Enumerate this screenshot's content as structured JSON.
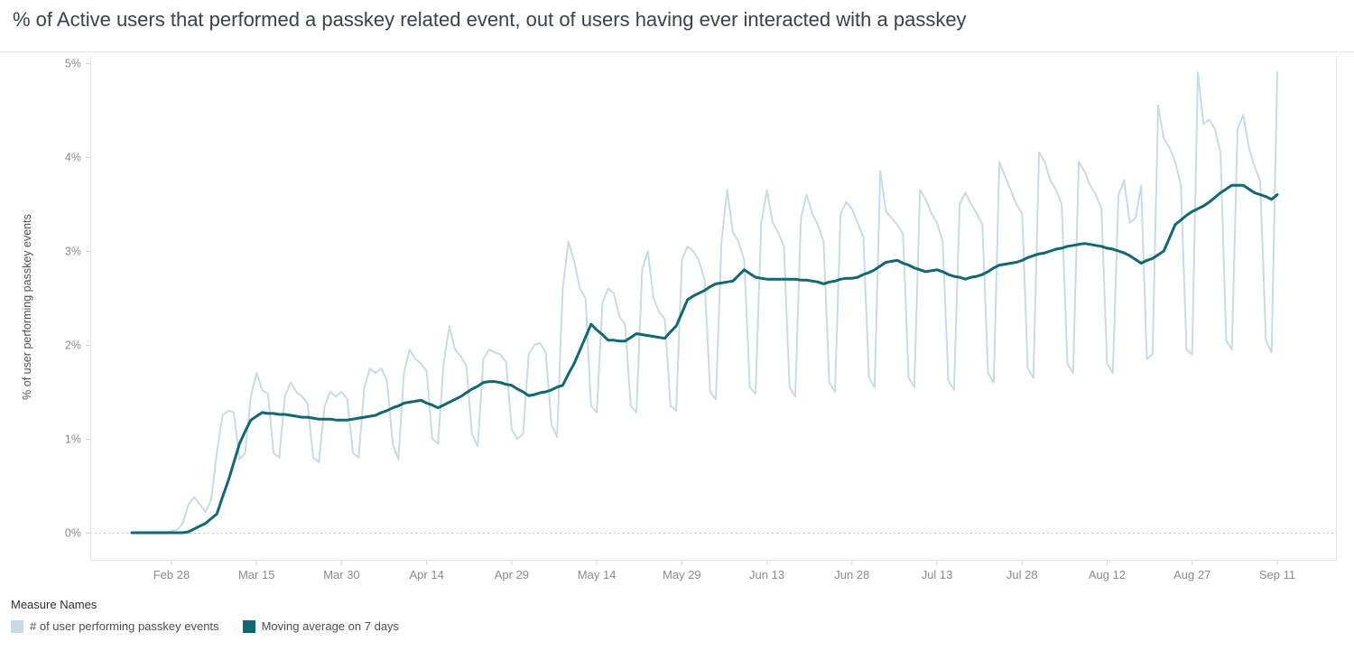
{
  "title": "% of Active users that performed a passkey related event, out of users having ever interacted with a passkey",
  "colors": {
    "daily_series": "#c7dce2",
    "moving_avg_series": "#0f6876",
    "axis_text": "#878c91",
    "title_text": "#3a4149",
    "grid_dotted": "#c9c9c9",
    "rule": "#e3e3e3",
    "background": "#ffffff"
  },
  "legend": {
    "title": "Measure Names",
    "items": [
      {
        "label": "# of user performing passkey events",
        "color": "#c7dce2"
      },
      {
        "label": "Moving average on 7 days",
        "color": "#0f6876"
      }
    ]
  },
  "chart_data": {
    "type": "line",
    "title": "% of Active users that performed a passkey related event, out of users having ever interacted with a passkey",
    "xlabel": "",
    "ylabel": "% of user performing passkey events",
    "ylim": [
      0,
      5
    ],
    "y_ticks": [
      "0%",
      "1%",
      "2%",
      "3%",
      "4%",
      "5%"
    ],
    "y_tick_values": [
      0,
      1,
      2,
      3,
      4,
      5
    ],
    "x_tick_labels": [
      "Feb 28",
      "Mar 15",
      "Mar 30",
      "Apr 14",
      "Apr 29",
      "May 14",
      "May 29",
      "Jun 13",
      "Jun 28",
      "Jul 13",
      "Jul 28",
      "Aug 12",
      "Aug 27",
      "Sep 11"
    ],
    "x_tick_day_index": [
      7,
      22,
      37,
      52,
      67,
      82,
      97,
      112,
      127,
      142,
      157,
      172,
      187,
      202
    ],
    "x_description": "one point per day, day index 0 is about one week before Feb 28, day index 202 is Sep 11; values estimated from plot",
    "grid": "dotted baseline at 0% only",
    "legend_position": "bottom-left",
    "series": [
      {
        "name": "# of user performing passkey events",
        "color": "#c7dce2",
        "values": [
          0.0,
          0.0,
          0.0,
          0.0,
          0.0,
          0.0,
          0.0,
          0.02,
          0.03,
          0.1,
          0.3,
          0.38,
          0.3,
          0.22,
          0.35,
          0.85,
          1.25,
          1.3,
          1.28,
          0.78,
          0.85,
          1.45,
          1.7,
          1.52,
          1.48,
          0.85,
          0.8,
          1.45,
          1.6,
          1.5,
          1.45,
          1.38,
          0.8,
          0.75,
          1.35,
          1.5,
          1.45,
          1.5,
          1.42,
          0.85,
          0.8,
          1.55,
          1.75,
          1.7,
          1.75,
          1.62,
          0.95,
          0.78,
          1.7,
          1.95,
          1.85,
          1.8,
          1.72,
          1.0,
          0.95,
          1.8,
          2.2,
          1.95,
          1.88,
          1.78,
          1.05,
          0.92,
          1.85,
          1.95,
          1.92,
          1.9,
          1.82,
          1.1,
          1.0,
          1.05,
          1.9,
          2.0,
          2.02,
          1.92,
          1.15,
          1.02,
          2.6,
          3.1,
          2.9,
          2.6,
          2.5,
          1.35,
          1.28,
          2.45,
          2.6,
          2.55,
          2.3,
          2.22,
          1.35,
          1.28,
          2.8,
          3.0,
          2.5,
          2.35,
          2.28,
          1.35,
          1.3,
          2.9,
          3.05,
          3.0,
          2.9,
          2.7,
          1.5,
          1.42,
          3.1,
          3.65,
          3.2,
          3.1,
          2.9,
          1.55,
          1.48,
          3.3,
          3.65,
          3.3,
          3.2,
          3.05,
          1.55,
          1.45,
          3.35,
          3.6,
          3.4,
          3.28,
          3.1,
          1.6,
          1.5,
          3.4,
          3.52,
          3.45,
          3.3,
          3.15,
          1.65,
          1.55,
          3.85,
          3.42,
          3.35,
          3.28,
          3.18,
          1.65,
          1.55,
          3.65,
          3.55,
          3.4,
          3.3,
          3.1,
          1.62,
          1.52,
          3.5,
          3.62,
          3.5,
          3.4,
          3.28,
          1.7,
          1.6,
          3.95,
          3.8,
          3.65,
          3.5,
          3.4,
          1.75,
          1.65,
          4.05,
          3.95,
          3.75,
          3.65,
          3.5,
          1.8,
          1.7,
          3.95,
          3.85,
          3.7,
          3.6,
          3.45,
          1.8,
          1.7,
          3.6,
          3.75,
          3.3,
          3.35,
          3.7,
          1.85,
          1.9,
          4.55,
          4.2,
          4.1,
          3.95,
          3.7,
          1.95,
          1.9,
          4.9,
          4.35,
          4.4,
          4.3,
          4.05,
          2.05,
          1.95,
          4.3,
          4.45,
          4.1,
          3.9,
          3.75,
          2.05,
          1.92,
          4.9
        ]
      },
      {
        "name": "Moving average on 7 days",
        "color": "#0f6876",
        "values": [
          0.0,
          0.0,
          0.0,
          0.0,
          0.0,
          0.0,
          0.0,
          0.0,
          0.0,
          0.0,
          0.01,
          0.04,
          0.07,
          0.1,
          0.15,
          0.2,
          0.38,
          0.55,
          0.75,
          0.95,
          1.08,
          1.2,
          1.24,
          1.28,
          1.27,
          1.27,
          1.26,
          1.26,
          1.25,
          1.24,
          1.23,
          1.23,
          1.22,
          1.21,
          1.21,
          1.21,
          1.2,
          1.2,
          1.2,
          1.21,
          1.22,
          1.23,
          1.24,
          1.25,
          1.28,
          1.3,
          1.33,
          1.35,
          1.38,
          1.39,
          1.4,
          1.41,
          1.38,
          1.36,
          1.33,
          1.36,
          1.39,
          1.42,
          1.45,
          1.49,
          1.53,
          1.56,
          1.6,
          1.61,
          1.61,
          1.6,
          1.58,
          1.57,
          1.53,
          1.5,
          1.46,
          1.47,
          1.49,
          1.5,
          1.52,
          1.55,
          1.57,
          1.69,
          1.8,
          1.94,
          2.08,
          2.22,
          2.16,
          2.11,
          2.05,
          2.05,
          2.04,
          2.04,
          2.08,
          2.12,
          2.11,
          2.1,
          2.09,
          2.08,
          2.07,
          2.14,
          2.2,
          2.34,
          2.48,
          2.52,
          2.55,
          2.58,
          2.62,
          2.65,
          2.66,
          2.67,
          2.68,
          2.74,
          2.8,
          2.76,
          2.72,
          2.71,
          2.7,
          2.7,
          2.7,
          2.7,
          2.7,
          2.7,
          2.69,
          2.69,
          2.68,
          2.67,
          2.65,
          2.67,
          2.68,
          2.7,
          2.71,
          2.71,
          2.72,
          2.75,
          2.77,
          2.8,
          2.84,
          2.88,
          2.89,
          2.9,
          2.87,
          2.85,
          2.82,
          2.8,
          2.78,
          2.79,
          2.8,
          2.78,
          2.75,
          2.73,
          2.72,
          2.7,
          2.72,
          2.73,
          2.75,
          2.78,
          2.82,
          2.85,
          2.86,
          2.87,
          2.88,
          2.9,
          2.93,
          2.95,
          2.97,
          2.98,
          3.0,
          3.02,
          3.03,
          3.05,
          3.06,
          3.07,
          3.08,
          3.07,
          3.06,
          3.05,
          3.03,
          3.02,
          3.0,
          2.98,
          2.95,
          2.91,
          2.87,
          2.9,
          2.92,
          2.96,
          3.0,
          3.14,
          3.28,
          3.33,
          3.38,
          3.42,
          3.45,
          3.48,
          3.52,
          3.57,
          3.62,
          3.66,
          3.7,
          3.7,
          3.7,
          3.66,
          3.62,
          3.6,
          3.58,
          3.55,
          3.6
        ]
      }
    ]
  }
}
